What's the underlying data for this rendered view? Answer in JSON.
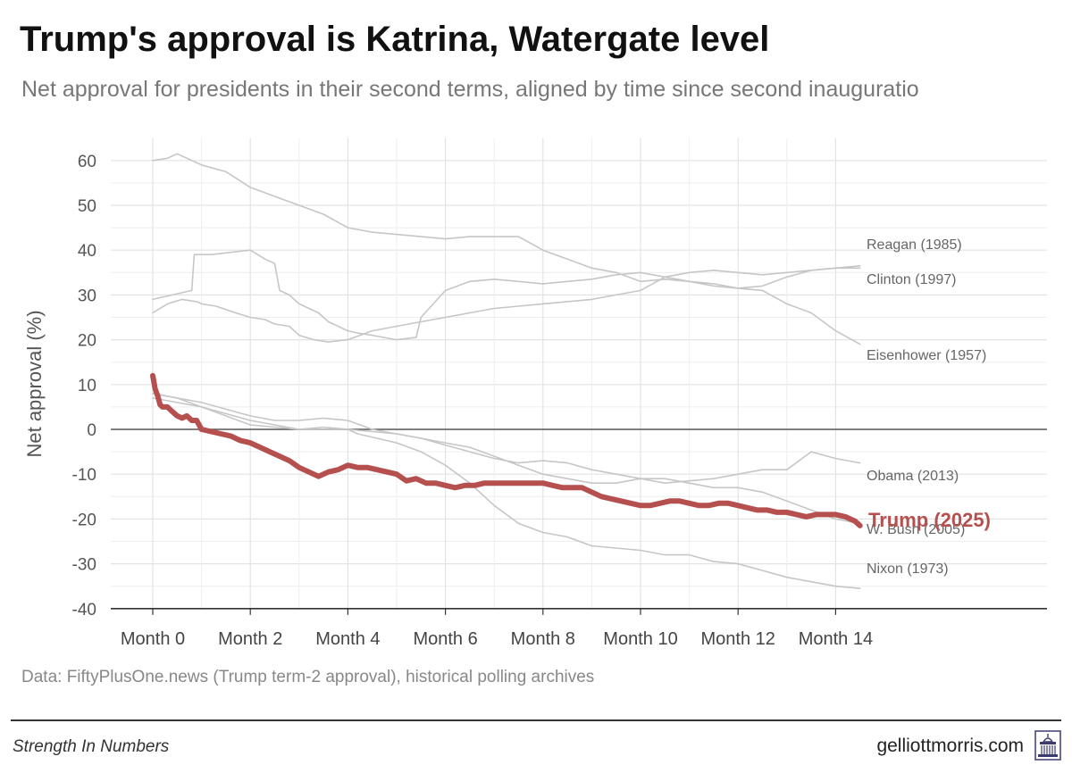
{
  "header": {
    "title": "Trump's approval is Katrina, Watergate level",
    "subtitle": "Net approval for presidents in their second terms, aligned by time since second inauguratio"
  },
  "footer": {
    "source": "Data: FiftyPlusOne.news (Trump term-2 approval), historical polling archives",
    "brand": "Strength In Numbers",
    "site": "gelliottmorris.com",
    "logo_icon": "capitol-building-icon"
  },
  "colors": {
    "trump": "#b5504f",
    "other": "#c6c6c6",
    "label": "#666666",
    "grid": "#e3e3e3",
    "zero": "#555555"
  },
  "chart_data": {
    "type": "line",
    "title": "Trump's approval is Katrina, Watergate level",
    "subtitle": "Net approval for presidents in their second terms, aligned by time since second inauguratio",
    "xlabel": "",
    "ylabel": "Net approval (%)",
    "xlim": [
      0,
      14.6
    ],
    "ylim": [
      -40,
      65
    ],
    "x_ticks": [
      0,
      2,
      4,
      6,
      8,
      10,
      12,
      14
    ],
    "x_tick_labels": [
      "Month 0",
      "Month 2",
      "Month 4",
      "Month 6",
      "Month 8",
      "Month 10",
      "Month 12",
      "Month 14"
    ],
    "y_ticks": [
      60,
      50,
      40,
      30,
      20,
      10,
      0,
      -10,
      -20,
      -30,
      -40
    ],
    "y_tick_labels": [
      "60",
      "50",
      "40",
      "30",
      "20",
      "10",
      "0",
      "-10",
      "-20",
      "-30",
      "-40"
    ],
    "grid": true,
    "series": [
      {
        "name": "Reagan (1985)",
        "x": [
          0,
          0.3,
          0.5,
          0.8,
          1,
          1.5,
          2,
          2.5,
          3,
          3.5,
          4,
          4.5,
          5,
          5.5,
          6,
          6.5,
          7,
          7.5,
          8,
          8.5,
          9,
          9.5,
          10,
          10.5,
          11,
          11.5,
          12,
          12.5,
          13,
          13.5,
          14,
          14.5
        ],
        "y": [
          60,
          60.5,
          61.5,
          60,
          59,
          57.5,
          54,
          52,
          50,
          48,
          45,
          44,
          43.5,
          43,
          42.5,
          43,
          43,
          43,
          40,
          38,
          36,
          35,
          33,
          33.5,
          33,
          32,
          31.5,
          32,
          34,
          35.5,
          36,
          36.5
        ]
      },
      {
        "name": "Clinton (1997)",
        "x": [
          0,
          0.3,
          0.6,
          0.9,
          1,
          1.3,
          1.7,
          2,
          2.3,
          2.5,
          2.8,
          3,
          3.3,
          3.6,
          4,
          4.5,
          5,
          5.5,
          6,
          6.5,
          7,
          7.5,
          8,
          8.5,
          9,
          9.5,
          10,
          10.5,
          11,
          11.5,
          12,
          12.5,
          13,
          13.5,
          14,
          14.5
        ],
        "y": [
          26,
          28,
          29,
          28.5,
          28,
          27.5,
          26,
          25,
          24.5,
          23.5,
          23,
          21,
          20,
          19.5,
          20,
          22,
          23,
          24,
          25,
          26,
          27,
          27.5,
          28,
          28.5,
          29,
          30,
          31,
          34,
          35,
          35.5,
          35,
          34.5,
          35,
          35.5,
          36,
          36
        ]
      },
      {
        "name": "Eisenhower (1957)",
        "x": [
          0,
          0.4,
          0.8,
          0.85,
          1.2,
          1.6,
          2,
          2.3,
          2.5,
          2.6,
          2.8,
          3,
          3.4,
          3.6,
          4,
          4.2,
          4.5,
          5,
          5.4,
          5.5,
          6,
          6.5,
          7,
          7.5,
          8,
          8.5,
          9,
          9.5,
          10,
          10.5,
          11,
          11.5,
          12,
          12.5,
          13,
          13.5,
          14,
          14.5
        ],
        "y": [
          29,
          30,
          31,
          39,
          39,
          39.5,
          40,
          38,
          37,
          31,
          30,
          28,
          26,
          24,
          22,
          21.5,
          21,
          20,
          20.5,
          25,
          31,
          33,
          33.5,
          33,
          32.5,
          33,
          33.5,
          34.5,
          35,
          34,
          33,
          32.5,
          31.5,
          31,
          28,
          26,
          22,
          19
        ]
      },
      {
        "name": "Obama (2013)",
        "x": [
          0,
          0.5,
          1,
          1.5,
          2,
          2.5,
          3,
          3.5,
          4,
          4.5,
          5,
          5.5,
          6,
          6.5,
          7,
          7.5,
          8,
          8.5,
          9,
          9.5,
          10,
          10.5,
          11,
          11.5,
          12,
          12.5,
          13,
          13.5,
          14,
          14.5
        ],
        "y": [
          8,
          7,
          6,
          4.5,
          3,
          2,
          2,
          2.5,
          2,
          0,
          -1,
          -2,
          -3.5,
          -5,
          -6.5,
          -7.5,
          -7,
          -7.5,
          -9,
          -10,
          -11,
          -12,
          -11.5,
          -11,
          -10,
          -9,
          -9,
          -5,
          -6.5,
          -7.5
        ]
      },
      {
        "name": "W. Bush (2005)",
        "x": [
          0,
          0.5,
          1,
          1.5,
          2,
          2.5,
          3,
          3.5,
          4,
          4.5,
          5,
          5.5,
          6,
          6.5,
          7,
          7.5,
          8,
          8.5,
          9,
          9.5,
          10,
          10.5,
          11,
          11.5,
          12,
          12.5,
          13,
          13.5,
          14,
          14.5
        ],
        "y": [
          7,
          6,
          5,
          3,
          1,
          0.5,
          0,
          0.5,
          0,
          -0.5,
          -1,
          -2,
          -3,
          -4,
          -6,
          -8,
          -10,
          -11,
          -12,
          -12,
          -11,
          -11,
          -12,
          -13,
          -13,
          -14,
          -16,
          -18,
          -20,
          -21
        ]
      },
      {
        "name": "Nixon (1973)",
        "x": [
          0,
          0.5,
          1,
          1.5,
          2,
          2.5,
          3,
          3.5,
          4,
          4.2,
          4.6,
          5,
          5.5,
          6,
          6.5,
          7,
          7.5,
          8,
          8.5,
          9,
          9.5,
          10,
          10.5,
          11,
          11.5,
          12,
          12.5,
          13,
          13.5,
          14,
          14.5
        ],
        "y": [
          8,
          7,
          5,
          3.5,
          2,
          1,
          0,
          0,
          0,
          -1,
          -2,
          -3,
          -5,
          -8,
          -12,
          -17,
          -21,
          -23,
          -24,
          -26,
          -26.5,
          -27,
          -28,
          -28,
          -29.5,
          -30,
          -31.5,
          -33,
          -34,
          -35,
          -35.5
        ]
      },
      {
        "name": "Trump (2025)",
        "x": [
          0,
          0.05,
          0.1,
          0.15,
          0.2,
          0.3,
          0.4,
          0.5,
          0.6,
          0.7,
          0.8,
          0.9,
          1,
          1.2,
          1.4,
          1.6,
          1.8,
          2,
          2.2,
          2.4,
          2.6,
          2.8,
          3,
          3.2,
          3.4,
          3.6,
          3.8,
          4,
          4.2,
          4.4,
          4.6,
          4.8,
          5,
          5.2,
          5.4,
          5.6,
          5.8,
          6,
          6.2,
          6.4,
          6.6,
          6.8,
          7,
          7.2,
          7.4,
          7.6,
          7.8,
          8,
          8.2,
          8.4,
          8.6,
          8.8,
          9,
          9.2,
          9.4,
          9.6,
          9.8,
          10,
          10.2,
          10.4,
          10.6,
          10.8,
          11,
          11.2,
          11.4,
          11.6,
          11.8,
          12,
          12.2,
          12.4,
          12.6,
          12.8,
          13,
          13.2,
          13.4,
          13.6,
          13.8,
          14,
          14.2,
          14.4,
          14.5
        ],
        "y": [
          12,
          9,
          7.5,
          5.5,
          5,
          5,
          4,
          3,
          2.5,
          3,
          2,
          2,
          0,
          -0.5,
          -1,
          -1.5,
          -2.5,
          -3,
          -4,
          -5,
          -6,
          -7,
          -8.5,
          -9.5,
          -10.5,
          -9.5,
          -9,
          -8,
          -8.5,
          -8.5,
          -9,
          -9.5,
          -10,
          -11.5,
          -11,
          -12,
          -12,
          -12.5,
          -13,
          -12.5,
          -12.5,
          -12,
          -12,
          -12,
          -12,
          -12,
          -12,
          -12,
          -12.5,
          -13,
          -13,
          -13,
          -14,
          -15,
          -15.5,
          -16,
          -16.5,
          -17,
          -17,
          -16.5,
          -16,
          -16,
          -16.5,
          -17,
          -17,
          -16.5,
          -16.5,
          -17,
          -17.5,
          -18,
          -18,
          -18.5,
          -18.5,
          -19,
          -19.5,
          -19,
          -19,
          -19,
          -19.5,
          -20.5,
          -21.5
        ]
      }
    ]
  }
}
